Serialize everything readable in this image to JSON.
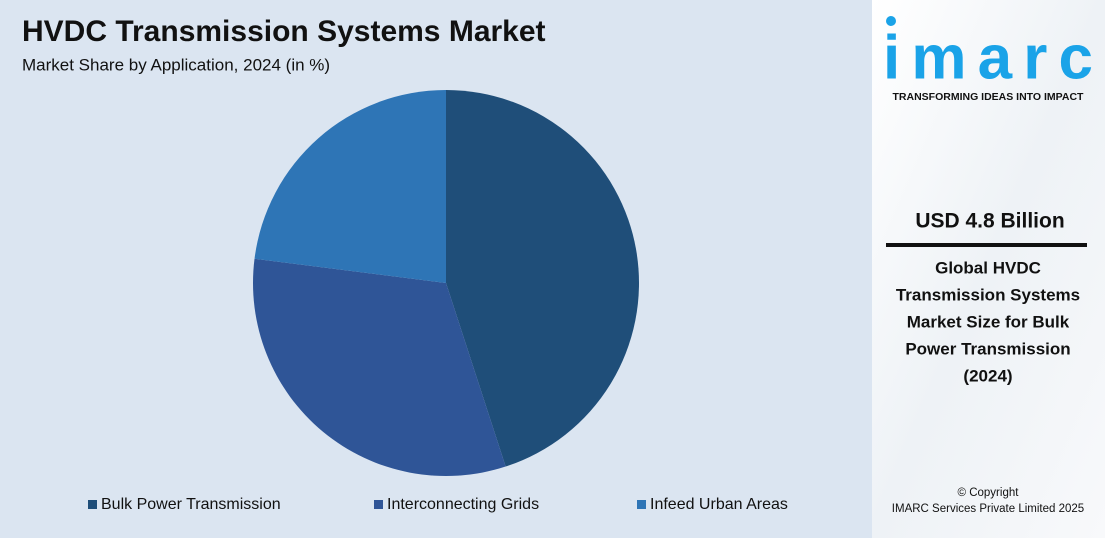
{
  "chart_data": {
    "type": "pie",
    "title": "HVDC Transmission Systems Market",
    "subtitle": "Market Share by Application, 2024 (in %)",
    "categories": [
      "Bulk Power Transmission",
      "Interconnecting Grids",
      "Infeed Urban Areas"
    ],
    "values": [
      45,
      32,
      23
    ],
    "colors": [
      "#1f4e79",
      "#2f5597",
      "#2e75b6"
    ],
    "legend": "bottom"
  },
  "panel": {
    "logo": "imarc",
    "tagline": "TRANSFORMING IDEAS INTO IMPACT",
    "highlight": "USD 4.8 Billion",
    "description": [
      "Global HVDC",
      "Transmission Systems",
      "Market Size for Bulk",
      "Power Transmission",
      "(2024)"
    ],
    "copyright": [
      "© Copyright",
      "IMARC Services Private Limited 2025"
    ]
  }
}
